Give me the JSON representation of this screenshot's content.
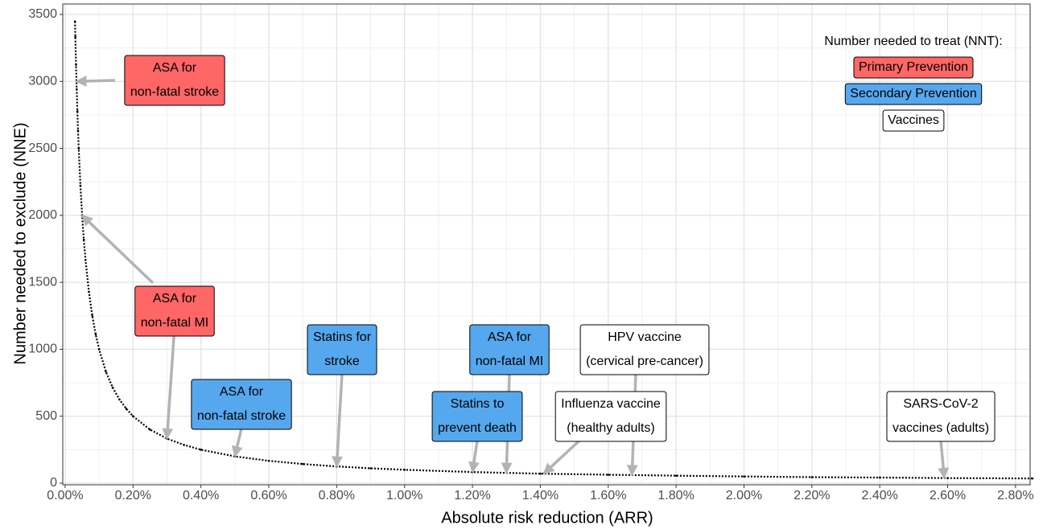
{
  "chart_data": {
    "type": "scatter",
    "xlabel": "Absolute risk reduction (ARR)",
    "ylabel": "Number needed to exclude (NNE)",
    "x": [
      0.029,
      0.03,
      0.032,
      0.034,
      0.036,
      0.038,
      0.04,
      0.045,
      0.05,
      0.055,
      0.06,
      0.07,
      0.08,
      0.09,
      0.1,
      0.12,
      0.14,
      0.16,
      0.18,
      0.2,
      0.25,
      0.3,
      0.35,
      0.4,
      0.5,
      0.6,
      0.7,
      0.8,
      0.9,
      1.0,
      1.2,
      1.4,
      1.6,
      1.8,
      2.0,
      2.2,
      2.4,
      2.6,
      2.85
    ],
    "values": [
      3448,
      3333,
      3125,
      2941,
      2778,
      2632,
      2500,
      2222,
      2000,
      1818,
      1667,
      1429,
      1250,
      1111,
      1000,
      833,
      714,
      625,
      556,
      500,
      400,
      333,
      286,
      250,
      200,
      167,
      143,
      125,
      111,
      100,
      83,
      71,
      63,
      56,
      50,
      45,
      42,
      38,
      35
    ],
    "color": "#000000",
    "xlim": [
      -0.007,
      2.843
    ],
    "ylim": [
      -12,
      3578
    ],
    "xticks": [
      {
        "value": 0,
        "label": "0.00%"
      },
      {
        "value": 0.2,
        "label": "0.20%"
      },
      {
        "value": 0.4,
        "label": "0.40%"
      },
      {
        "value": 0.6,
        "label": "0.60%"
      },
      {
        "value": 0.8,
        "label": "0.80%"
      },
      {
        "value": 1.0,
        "label": "1.00%"
      },
      {
        "value": 1.2,
        "label": "1.20%"
      },
      {
        "value": 1.4,
        "label": "1.40%"
      },
      {
        "value": 1.6,
        "label": "1.60%"
      },
      {
        "value": 1.8,
        "label": "1.80%"
      },
      {
        "value": 2.0,
        "label": "2.00%"
      },
      {
        "value": 2.2,
        "label": "2.20%"
      },
      {
        "value": 2.4,
        "label": "2.40%"
      },
      {
        "value": 2.6,
        "label": "2.60%"
      },
      {
        "value": 2.8,
        "label": "2.80%"
      }
    ],
    "yticks": [
      0,
      500,
      1000,
      1500,
      2000,
      2500,
      3000,
      3500
    ],
    "xminor": [
      0.1,
      0.3,
      0.5,
      0.7,
      0.9,
      1.1,
      1.3,
      1.5,
      1.7,
      1.9,
      2.1,
      2.3,
      2.5,
      2.7
    ],
    "yminor": [
      250,
      750,
      1250,
      1750,
      2250,
      2750,
      3250
    ],
    "grid": true,
    "legend": {
      "title": "Number needed to treat (NNT):",
      "position": "top-right",
      "entries": [
        {
          "name": "Primary Prevention",
          "color": "#ff6666"
        },
        {
          "name": "Secondary Prevention",
          "color": "#56a8ee"
        },
        {
          "name": "Vaccines",
          "color": "#ffffff"
        }
      ]
    },
    "annotations": [
      {
        "lines": [
          "ASA for",
          "non-fatal stroke"
        ],
        "group": 0,
        "targets": [
          {
            "x": 0.033,
            "y": 3000
          }
        ]
      },
      {
        "lines": [
          "ASA for",
          "non-fatal MI"
        ],
        "group": 0,
        "targets": [
          {
            "x": 0.05,
            "y": 2000
          },
          {
            "x": 0.3,
            "y": 333
          }
        ]
      },
      {
        "lines": [
          "ASA for",
          "non-fatal stroke"
        ],
        "group": 1,
        "targets": [
          {
            "x": 0.5,
            "y": 200
          }
        ]
      },
      {
        "lines": [
          "Statins for",
          "stroke"
        ],
        "group": 1,
        "targets": [
          {
            "x": 0.8,
            "y": 125
          }
        ]
      },
      {
        "lines": [
          "ASA for",
          "non-fatal MI"
        ],
        "group": 1,
        "targets": [
          {
            "x": 1.3,
            "y": 77
          }
        ]
      },
      {
        "lines": [
          "Statins to",
          "prevent death"
        ],
        "group": 1,
        "targets": [
          {
            "x": 1.2,
            "y": 83
          }
        ]
      },
      {
        "lines": [
          "HPV vaccine",
          "(cervical pre-cancer)"
        ],
        "group": 2,
        "targets": [
          {
            "x": 1.67,
            "y": 60
          }
        ]
      },
      {
        "lines": [
          "Influenza vaccine",
          "(healthy adults)"
        ],
        "group": 2,
        "targets": [
          {
            "x": 1.41,
            "y": 71
          }
        ]
      },
      {
        "lines": [
          "SARS-CoV-2",
          "vaccines (adults)"
        ],
        "group": 2,
        "targets": [
          {
            "x": 2.59,
            "y": 39
          }
        ]
      }
    ]
  }
}
